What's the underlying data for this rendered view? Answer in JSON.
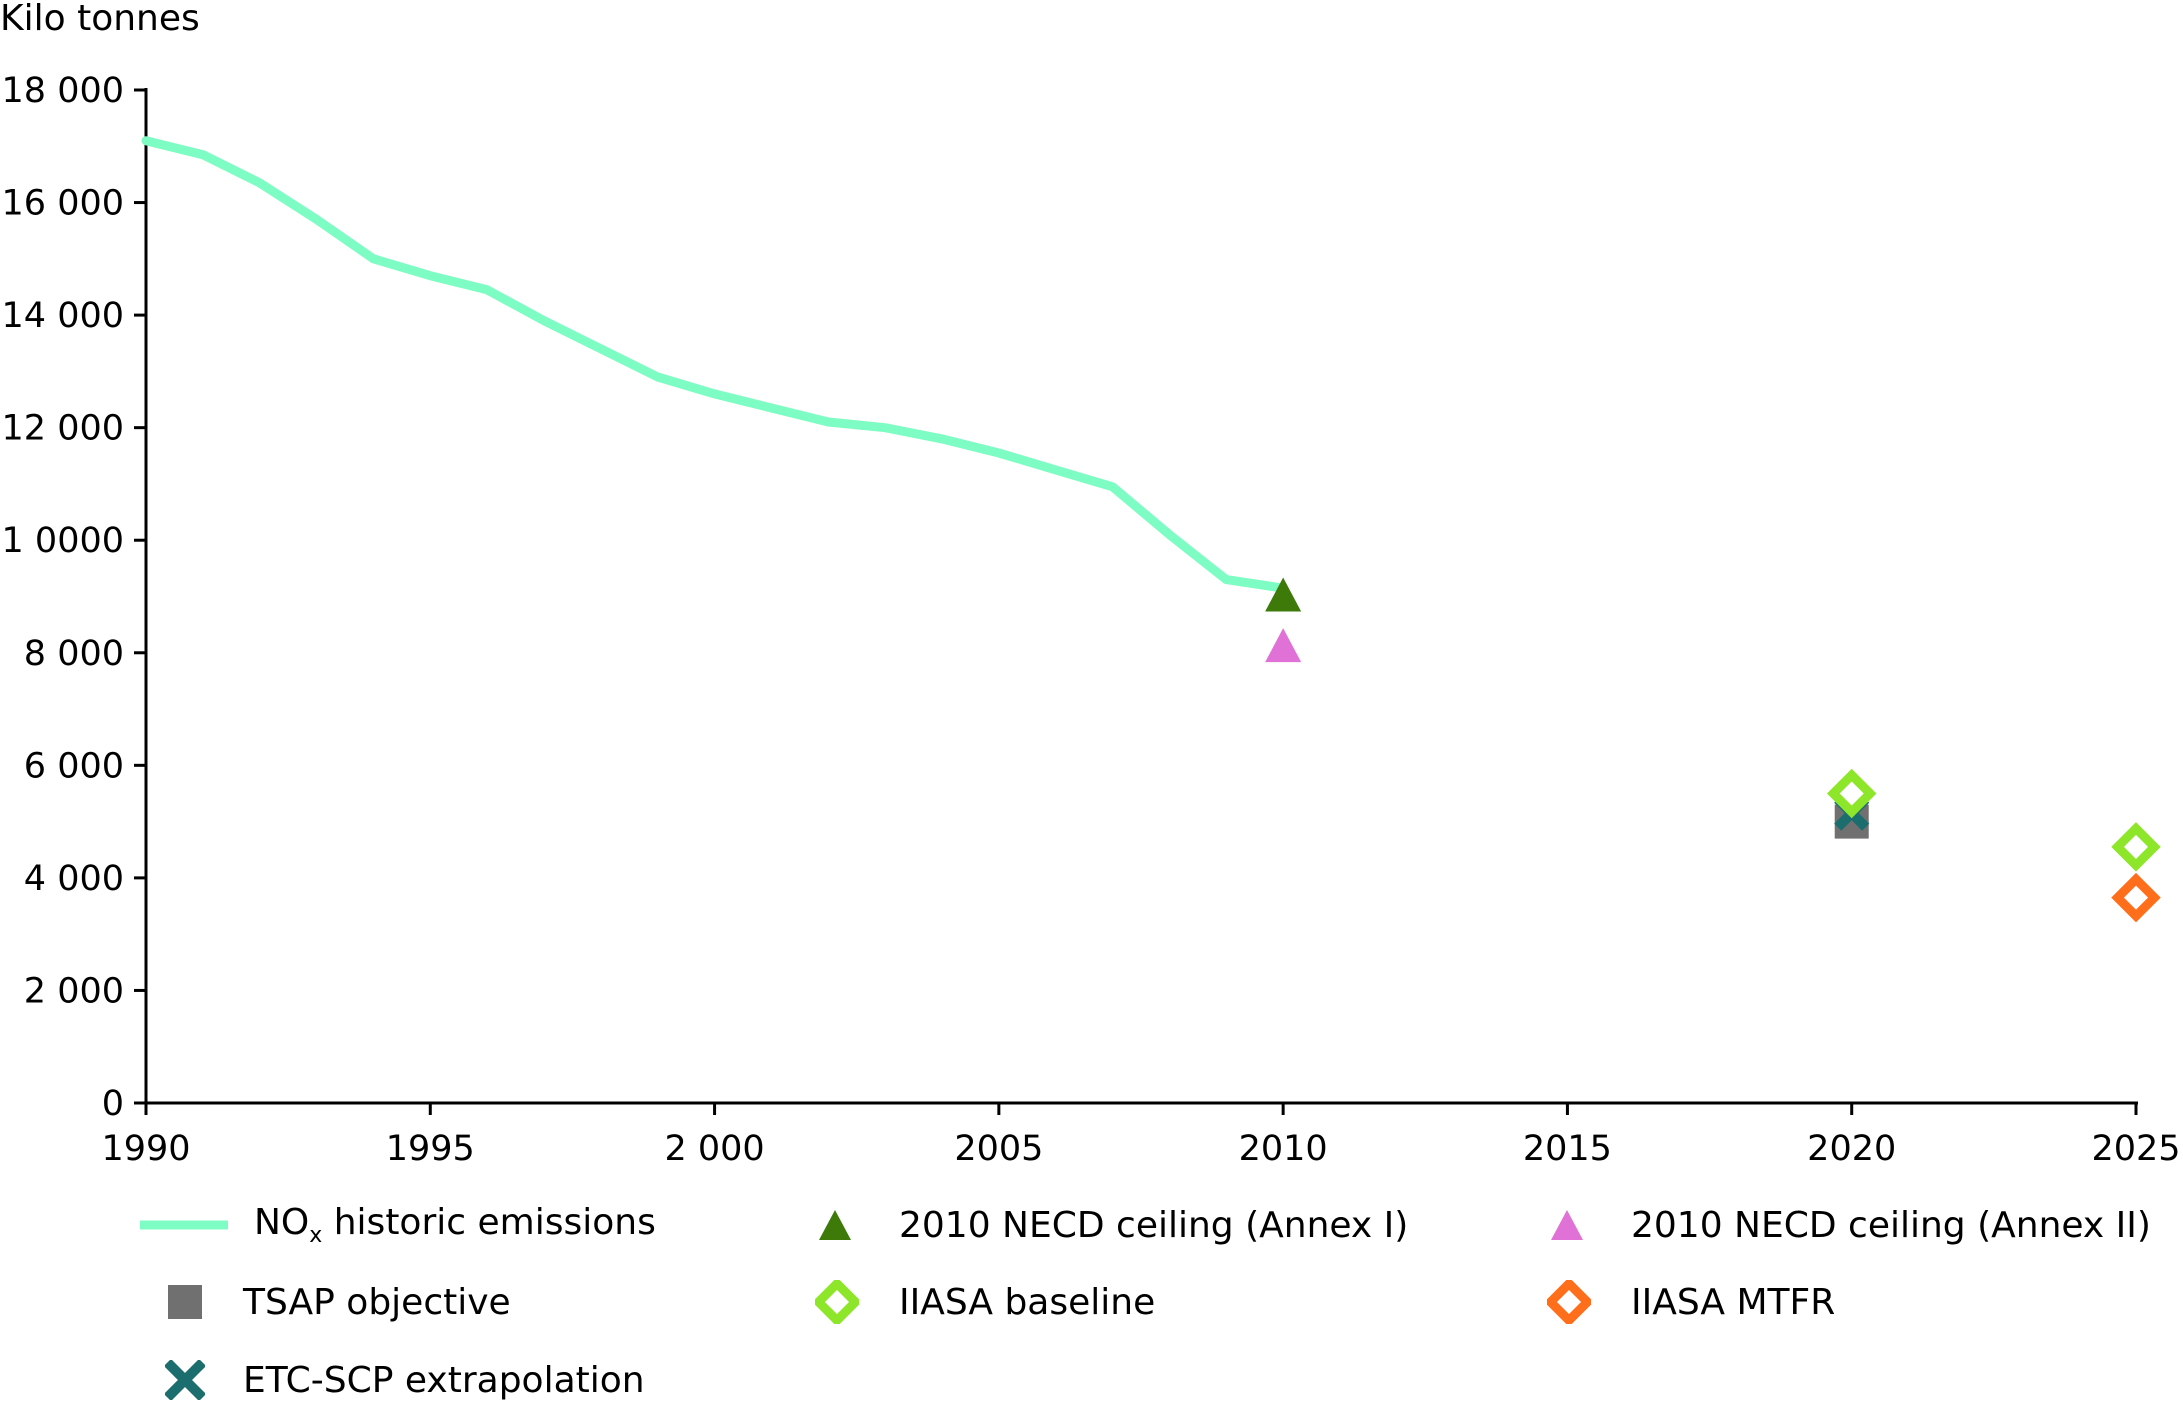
{
  "chart_data": {
    "type": "line",
    "ylabel": "Kilo tonnes",
    "xlabel": "",
    "xlim": [
      1990,
      2025
    ],
    "ylim": [
      0,
      18000
    ],
    "x_ticks": [
      1990,
      1995,
      2000,
      2005,
      2010,
      2015,
      2020,
      2025
    ],
    "x_tick_labels": [
      "1990",
      "1995",
      "2 000",
      "2005",
      "2010",
      "2015",
      "2020",
      "2025"
    ],
    "y_ticks": [
      0,
      2000,
      4000,
      6000,
      8000,
      10000,
      12000,
      14000,
      16000,
      18000
    ],
    "y_tick_labels": [
      "0",
      "2 000",
      "4 000",
      "6 000",
      "8 000",
      "1 0000",
      "12 000",
      "14 000",
      "16 000",
      "18 000"
    ],
    "grid": false,
    "legend_position": "bottom",
    "series": [
      {
        "name_main": "NO",
        "name_sub": "x",
        "name_rest": " historic emissions",
        "kind": "line",
        "color": "#7dfcc3",
        "x": [
          1990,
          1991,
          1992,
          1993,
          1994,
          1995,
          1996,
          1997,
          1998,
          1999,
          2000,
          2001,
          2002,
          2003,
          2004,
          2005,
          2006,
          2007,
          2008,
          2009,
          2010
        ],
        "y": [
          17100,
          16850,
          16350,
          15700,
          15000,
          14700,
          14450,
          13900,
          13400,
          12900,
          12600,
          12350,
          12100,
          12000,
          11800,
          11550,
          11250,
          10950,
          10100,
          9300,
          9150
        ]
      },
      {
        "name": "2010 NECD ceiling (Annex I)",
        "kind": "marker",
        "marker": "triangle",
        "color": "#3d7a0a",
        "x": [
          2010
        ],
        "y": [
          9000
        ]
      },
      {
        "name": "2010 NECD ceiling (Annex II)",
        "kind": "marker",
        "marker": "triangle",
        "color": "#e071d6",
        "x": [
          2010
        ],
        "y": [
          8100
        ]
      },
      {
        "name": "TSAP objective",
        "kind": "marker",
        "marker": "square",
        "color": "#707070",
        "x": [
          2020
        ],
        "y": [
          5000
        ]
      },
      {
        "name": "IIASA baseline",
        "kind": "marker",
        "marker": "diamond",
        "color": "#8ee62b",
        "x": [
          2020,
          2025
        ],
        "y": [
          5500,
          4550
        ]
      },
      {
        "name": "IIASA MTFR",
        "kind": "marker",
        "marker": "diamond",
        "color": "#ff6e1a",
        "x": [
          2025
        ],
        "y": [
          3650
        ]
      },
      {
        "name": "ETC-SCP extrapolation",
        "kind": "marker",
        "marker": "x",
        "color": "#1c6e6e",
        "x": [
          2020
        ],
        "y": [
          5150
        ]
      }
    ]
  }
}
